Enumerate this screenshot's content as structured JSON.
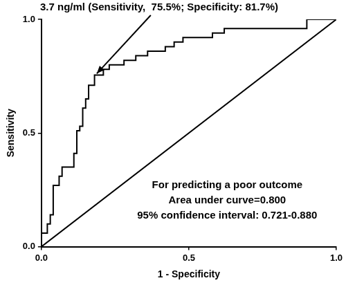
{
  "chart_data": {
    "type": "line",
    "xlabel": "1 - Specificity",
    "ylabel": "Sensitivity",
    "xlim": [
      0,
      1
    ],
    "ylim": [
      0,
      1
    ],
    "xticks": [
      {
        "value": 0,
        "label": "0.0"
      },
      {
        "value": 0.5,
        "label": "0.5"
      },
      {
        "value": 1,
        "label": "1.0"
      }
    ],
    "yticks": [
      {
        "value": 0,
        "label": "0.0"
      },
      {
        "value": 0.5,
        "label": "0.5"
      },
      {
        "value": 1,
        "label": "1.0"
      }
    ],
    "grid": false,
    "series": [
      {
        "color": "#000000",
        "line_style": "solid",
        "x": [
          0,
          0,
          0.02,
          0.02,
          0.03,
          0.03,
          0.04,
          0.04,
          0.06,
          0.06,
          0.07,
          0.07,
          0.11,
          0.11,
          0.12,
          0.12,
          0.13,
          0.13,
          0.14,
          0.14,
          0.15,
          0.15,
          0.16,
          0.16,
          0.18,
          0.18,
          0.21,
          0.21,
          0.23,
          0.23,
          0.28,
          0.28,
          0.32,
          0.32,
          0.36,
          0.36,
          0.42,
          0.42,
          0.45,
          0.45,
          0.48,
          0.48,
          0.58,
          0.58,
          0.62,
          0.62,
          0.9,
          0.9,
          1
        ],
        "values": [
          0,
          0.06,
          0.06,
          0.1,
          0.1,
          0.14,
          0.14,
          0.27,
          0.27,
          0.31,
          0.31,
          0.35,
          0.35,
          0.41,
          0.41,
          0.51,
          0.51,
          0.53,
          0.53,
          0.61,
          0.61,
          0.65,
          0.65,
          0.71,
          0.71,
          0.755,
          0.755,
          0.78,
          0.78,
          0.8,
          0.8,
          0.82,
          0.82,
          0.84,
          0.84,
          0.86,
          0.86,
          0.88,
          0.88,
          0.9,
          0.9,
          0.92,
          0.92,
          0.94,
          0.94,
          0.96,
          0.96,
          1,
          1
        ]
      },
      {
        "color": "#000000",
        "line_style": "solid",
        "x": [
          0,
          1
        ],
        "values": [
          0,
          1
        ]
      }
    ],
    "annotations": [
      {
        "text": "3.7 ng/ml (Sensitivity,  75.5%; Specificity: 81.7%)",
        "x": 0.183,
        "y": 0.755,
        "arrow": true
      },
      {
        "text": "For predicting a poor outcome"
      },
      {
        "text": "Area under curve=0.800"
      },
      {
        "text": "95% confidence interval: 0.721-0.880"
      }
    ]
  }
}
